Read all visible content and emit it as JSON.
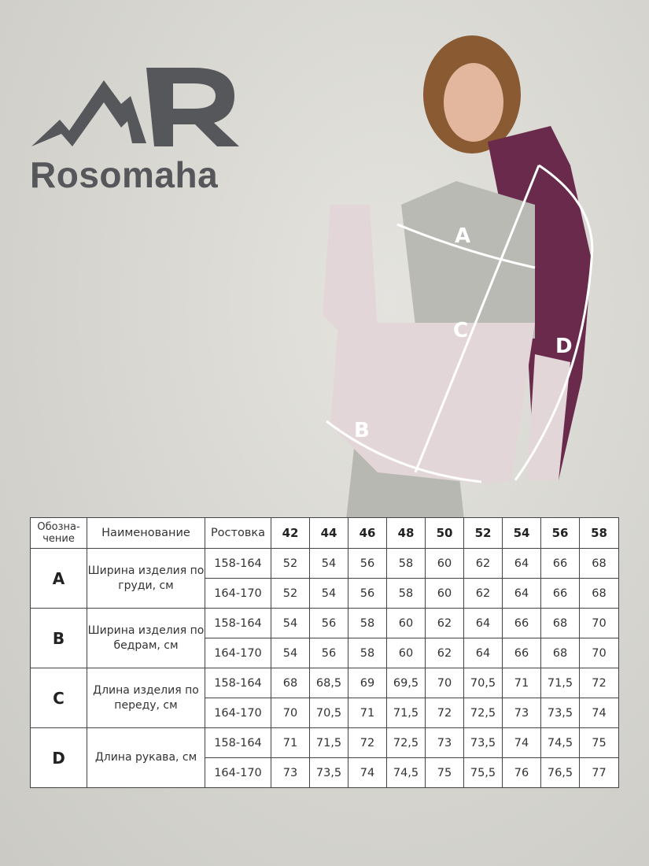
{
  "brand": {
    "name": "Rosomaha",
    "logo_color": "#55575a"
  },
  "photo": {
    "markers": [
      "A",
      "B",
      "C",
      "D"
    ],
    "jacket_colors": {
      "plum": "#6a2a4c",
      "gray": "#b9bab3",
      "pink": "#e3d6d8"
    }
  },
  "table": {
    "headers": {
      "code": "Обозна-чение",
      "name": "Наименование",
      "height": "Ростовка",
      "sizes": [
        "42",
        "44",
        "46",
        "48",
        "50",
        "52",
        "54",
        "56",
        "58"
      ]
    },
    "groups": [
      {
        "code": "A",
        "name": "Ширина изделия по груди, см",
        "rows": [
          {
            "height": "158-164",
            "values": [
              "52",
              "54",
              "56",
              "58",
              "60",
              "62",
              "64",
              "66",
              "68"
            ]
          },
          {
            "height": "164-170",
            "values": [
              "52",
              "54",
              "56",
              "58",
              "60",
              "62",
              "64",
              "66",
              "68"
            ]
          }
        ]
      },
      {
        "code": "B",
        "name": "Ширина изделия по бедрам, см",
        "rows": [
          {
            "height": "158-164",
            "values": [
              "54",
              "56",
              "58",
              "60",
              "62",
              "64",
              "66",
              "68",
              "70"
            ]
          },
          {
            "height": "164-170",
            "values": [
              "54",
              "56",
              "58",
              "60",
              "62",
              "64",
              "66",
              "68",
              "70"
            ]
          }
        ]
      },
      {
        "code": "C",
        "name": "Длина изделия по переду, см",
        "rows": [
          {
            "height": "158-164",
            "values": [
              "68",
              "68,5",
              "69",
              "69,5",
              "70",
              "70,5",
              "71",
              "71,5",
              "72"
            ]
          },
          {
            "height": "164-170",
            "values": [
              "70",
              "70,5",
              "71",
              "71,5",
              "72",
              "72,5",
              "73",
              "73,5",
              "74"
            ]
          }
        ]
      },
      {
        "code": "D",
        "name": "Длина рукава, см",
        "rows": [
          {
            "height": "158-164",
            "values": [
              "71",
              "71,5",
              "72",
              "72,5",
              "73",
              "73,5",
              "74",
              "74,5",
              "75"
            ]
          },
          {
            "height": "164-170",
            "values": [
              "73",
              "73,5",
              "74",
              "74,5",
              "75",
              "75,5",
              "76",
              "76,5",
              "77"
            ]
          }
        ]
      }
    ]
  }
}
